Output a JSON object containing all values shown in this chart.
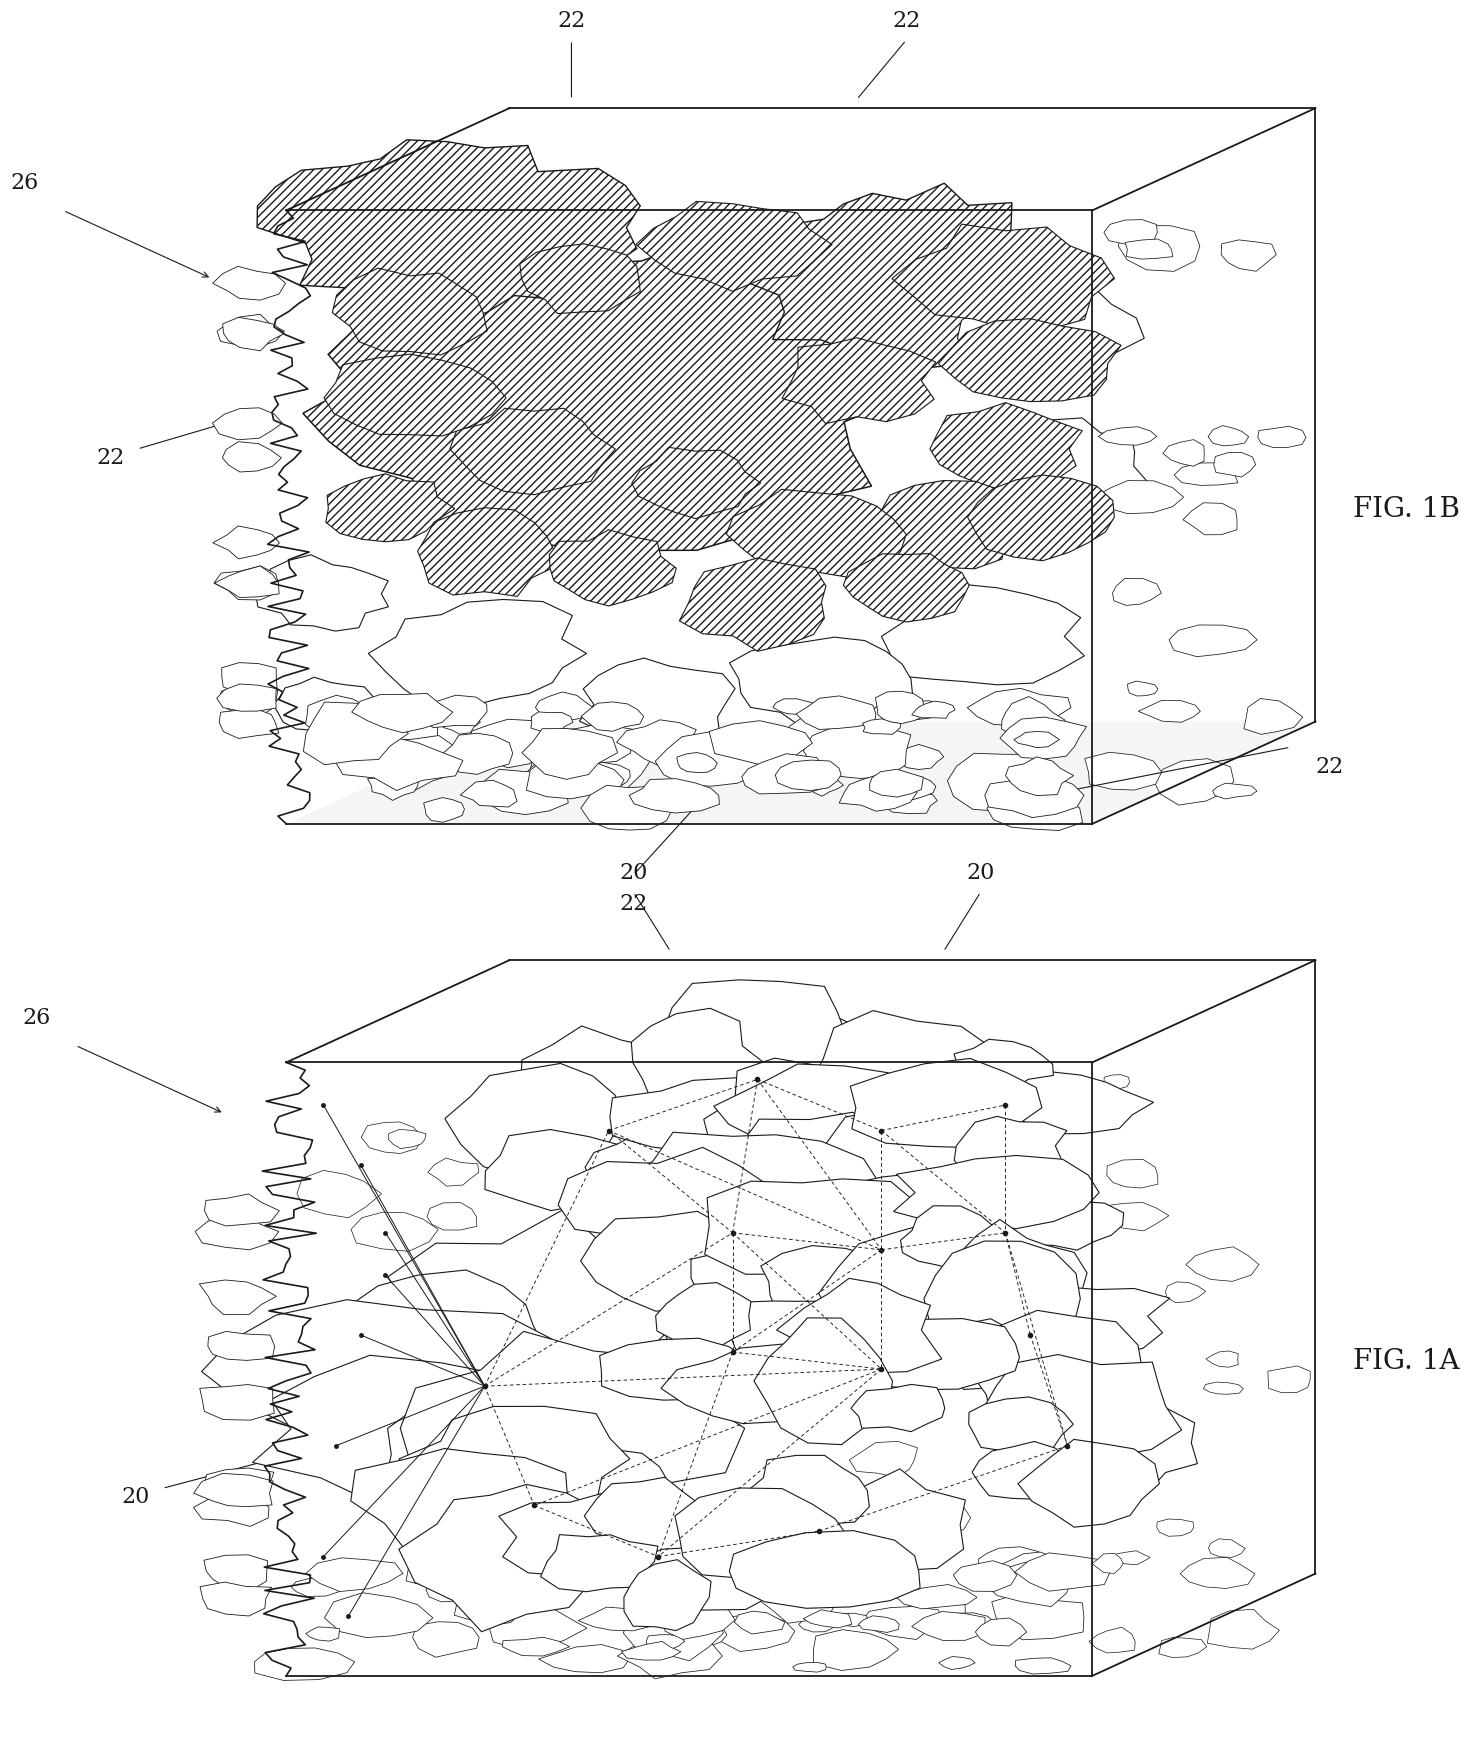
{
  "fig_width": 12.4,
  "fig_height": 17.04,
  "background_color": "#ffffff",
  "line_color": "#1a1a1a",
  "label_fontsize": 16,
  "figname_fontsize": 20,
  "linewidth": 1.0
}
